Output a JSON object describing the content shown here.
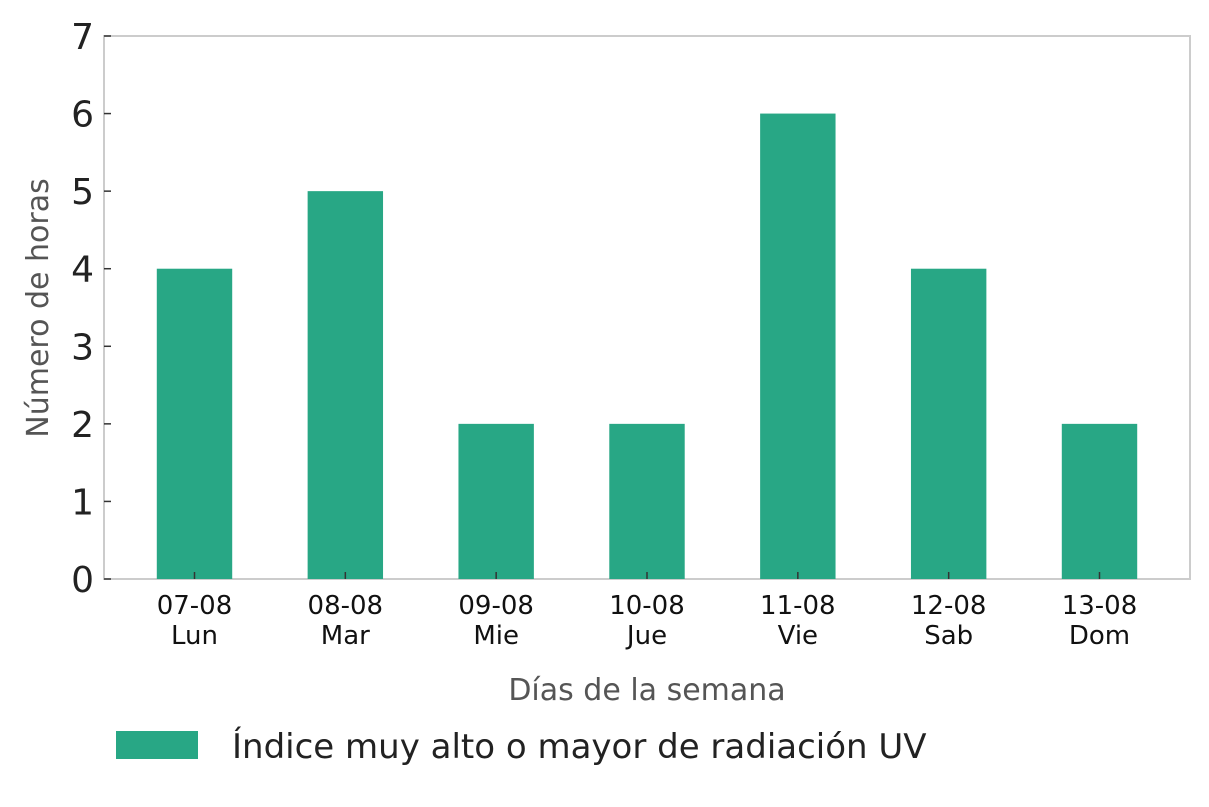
{
  "chart_data": {
    "type": "bar",
    "categories": [
      [
        "07-08",
        "Lun"
      ],
      [
        "08-08",
        "Mar"
      ],
      [
        "09-08",
        "Mie"
      ],
      [
        "10-08",
        "Jue"
      ],
      [
        "11-08",
        "Vie"
      ],
      [
        "12-08",
        "Sab"
      ],
      [
        "13-08",
        "Dom"
      ]
    ],
    "series": [
      {
        "name": "Índice muy alto o mayor de radiación UV",
        "values": [
          4,
          5,
          2,
          2,
          6,
          4,
          2
        ],
        "color": "#28a785"
      }
    ],
    "xlabel": "Días de la semana",
    "ylabel": "Número de horas",
    "ylim": [
      0,
      7
    ],
    "yticks": [
      0,
      1,
      2,
      3,
      4,
      5,
      6,
      7
    ],
    "grid": false,
    "legend_position": "bottom"
  }
}
